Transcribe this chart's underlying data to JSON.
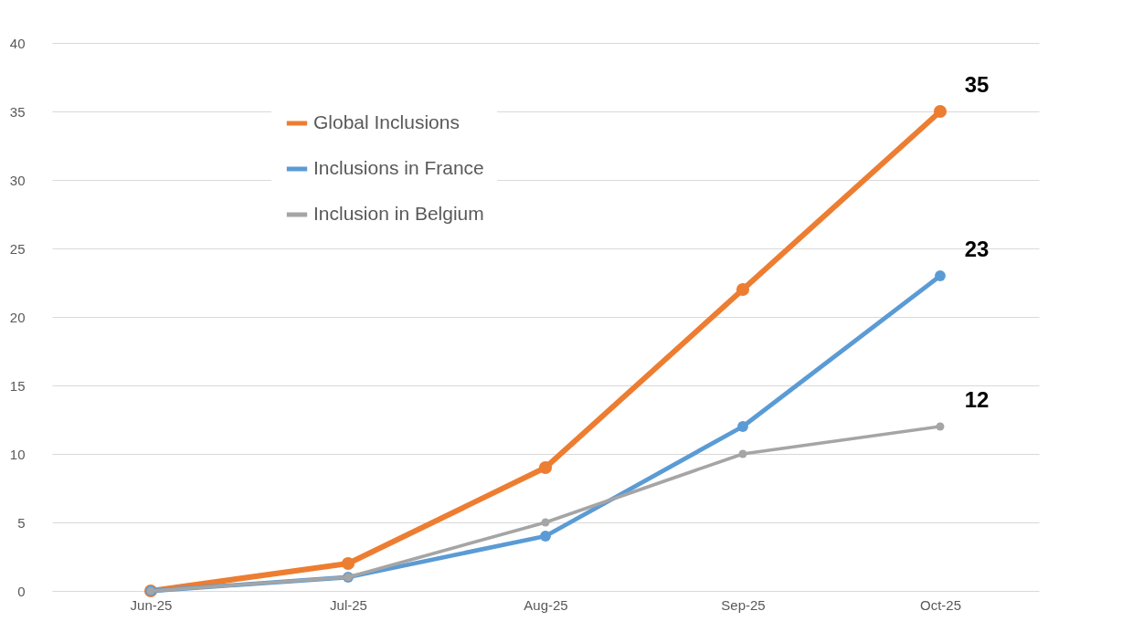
{
  "chart_data": {
    "type": "line",
    "categories": [
      "Jun-25",
      "Jul-25",
      "Aug-25",
      "Sep-25",
      "Oct-25"
    ],
    "series": [
      {
        "name": "Global Inclusions",
        "color": "#ed7d31",
        "values": [
          0,
          2,
          9,
          22,
          35
        ]
      },
      {
        "name": "Inclusions in France",
        "color": "#5b9bd5",
        "values": [
          0,
          1,
          4,
          12,
          23
        ]
      },
      {
        "name": "Inclusion in Belgium",
        "color": "#a5a5a5",
        "values": [
          0,
          1,
          5,
          10,
          12
        ]
      }
    ],
    "ylim": [
      0,
      40
    ],
    "yticks": [
      0,
      5,
      10,
      15,
      20,
      25,
      30,
      35,
      40
    ],
    "grid": "y",
    "legend": "top left",
    "marker": "circle",
    "line_style": "solid",
    "annotations": [
      {
        "text": "35",
        "x": "Oct-25",
        "y": 35
      },
      {
        "text": "23",
        "x": "Oct-25",
        "y": 23
      },
      {
        "text": "12",
        "x": "Oct-25",
        "y": 12
      }
    ]
  }
}
